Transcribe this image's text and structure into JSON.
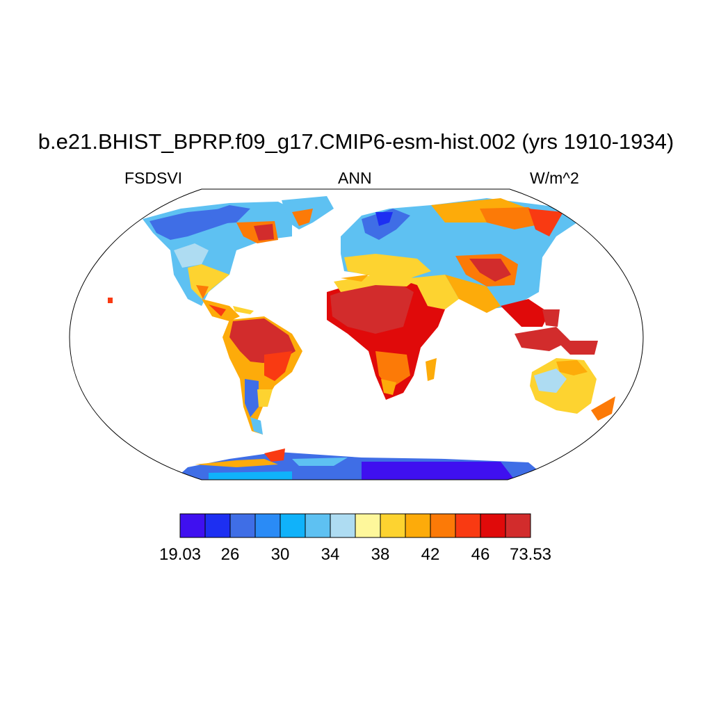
{
  "plot": {
    "title": "b.e21.BHIST_BPRP.f09_g17.CMIP6-esm-hist.002 (yrs 1910-1934)",
    "left_label": "FSDSVI",
    "center_label": "ANN",
    "right_label": "W/m^2",
    "projection": "Robinson"
  },
  "colorbar": {
    "colors": [
      "#3f10f0",
      "#1d2ff2",
      "#3f6ee6",
      "#2a8bf6",
      "#10b2fa",
      "#5ec1f2",
      "#aedcf2",
      "#fef79b",
      "#fdd330",
      "#fdab0a",
      "#fc7a07",
      "#f93a12",
      "#e00a0a",
      "#d22c2c"
    ],
    "labels": [
      "19.03",
      "26",
      "30",
      "34",
      "38",
      "42",
      "46",
      "73.53"
    ],
    "label_boundary_index": [
      0,
      2,
      4,
      6,
      8,
      10,
      12,
      14
    ]
  }
}
